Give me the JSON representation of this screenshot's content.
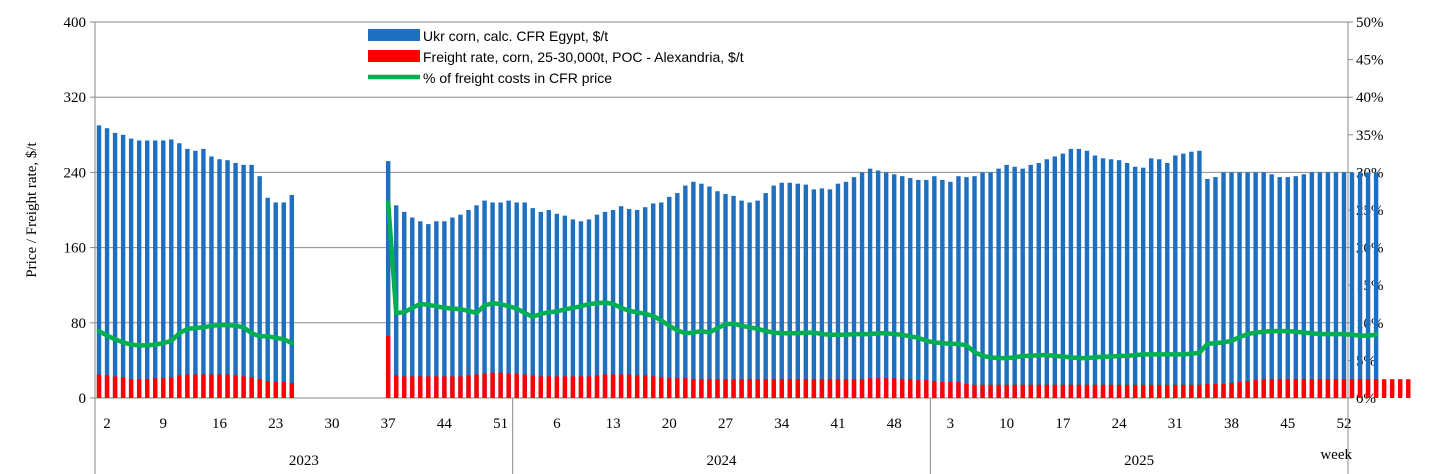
{
  "chart_data": {
    "type": "bar",
    "ylabel": "Price / Freight rate, $/t",
    "ylim": [
      0,
      400
    ],
    "y_ticks": [
      "0",
      "80",
      "160",
      "240",
      "320",
      "400"
    ],
    "y2lim": [
      0,
      50
    ],
    "y2_ticks": [
      "0%",
      "5%",
      "10%",
      "15%",
      "20%",
      "25%",
      "30%",
      "35%",
      "40%",
      "45%",
      "50%"
    ],
    "xlabel": "week",
    "grid": true,
    "legend_position": "top-center",
    "x_tick_labels": [
      {
        "week": 2,
        "label": "2"
      },
      {
        "week": 9,
        "label": "9"
      },
      {
        "week": 16,
        "label": "16"
      },
      {
        "week": 23,
        "label": "23"
      },
      {
        "week": 30,
        "label": "30"
      },
      {
        "week": 37,
        "label": "37"
      },
      {
        "week": 44,
        "label": "44"
      },
      {
        "week": 51,
        "label": "51"
      },
      {
        "week": 58,
        "label": "6"
      },
      {
        "week": 65,
        "label": "13"
      },
      {
        "week": 72,
        "label": "20"
      },
      {
        "week": 79,
        "label": "27"
      },
      {
        "week": 86,
        "label": "34"
      },
      {
        "week": 93,
        "label": "41"
      },
      {
        "week": 100,
        "label": "48"
      },
      {
        "week": 107,
        "label": "3"
      },
      {
        "week": 114,
        "label": "10"
      },
      {
        "week": 121,
        "label": "17"
      },
      {
        "week": 128,
        "label": "24"
      },
      {
        "week": 135,
        "label": "31"
      },
      {
        "week": 142,
        "label": "38"
      },
      {
        "week": 149,
        "label": "45"
      },
      {
        "week": 156,
        "label": "52"
      }
    ],
    "years": [
      {
        "label": "2023",
        "start_week": 1,
        "end_week": 52
      },
      {
        "label": "2024",
        "start_week": 53,
        "end_week": 104
      },
      {
        "label": "2025",
        "start_week": 105,
        "end_week": 156
      }
    ],
    "series": [
      {
        "name": "Ukr corn, calc. CFR Egypt, $/t",
        "color": "#1f6fbf",
        "kind": "bar",
        "values": [
          290,
          287,
          282,
          280,
          276,
          274,
          274,
          274,
          274,
          275,
          271,
          265,
          263,
          265,
          257,
          254,
          253,
          250,
          248,
          248,
          236,
          213,
          208,
          208,
          216,
          null,
          null,
          null,
          null,
          null,
          null,
          null,
          null,
          null,
          null,
          null,
          252,
          205,
          198,
          192,
          188,
          185,
          188,
          188,
          192,
          195,
          200,
          205,
          210,
          208,
          208,
          210,
          208,
          208,
          202,
          198,
          200,
          196,
          194,
          190,
          188,
          190,
          195,
          198,
          200,
          204,
          201,
          200,
          203,
          207,
          208,
          214,
          218,
          226,
          230,
          228,
          225,
          220,
          217,
          215,
          210,
          208,
          210,
          218,
          226,
          229,
          229,
          228,
          227,
          222,
          223,
          222,
          228,
          230,
          235,
          240,
          244,
          242,
          240,
          238,
          236,
          234,
          232,
          232,
          236,
          232,
          230,
          236,
          235,
          236,
          240,
          240,
          244,
          248,
          246,
          244,
          248,
          250,
          254,
          257,
          260,
          265,
          265,
          263,
          258,
          255,
          254,
          253,
          250,
          246,
          245,
          255,
          254,
          250,
          258,
          260,
          262,
          263,
          233,
          235,
          240,
          240,
          240,
          240,
          240,
          240,
          238,
          235,
          235,
          236,
          238,
          240,
          240,
          240,
          240,
          240,
          240,
          240,
          240,
          240
        ]
      },
      {
        "name": "Freight rate, corn, 25-30,000t, POC - Alexandria, $/t",
        "color": "#ff0000",
        "kind": "bar",
        "values": [
          25,
          24,
          23,
          22,
          20,
          20,
          20,
          21,
          21,
          22,
          24,
          25,
          25,
          25,
          25,
          25,
          25,
          24,
          23,
          22,
          20,
          18,
          17,
          17,
          16,
          null,
          null,
          null,
          null,
          null,
          null,
          null,
          null,
          null,
          null,
          null,
          66,
          24,
          23,
          23,
          23,
          23,
          23,
          23,
          23,
          23,
          24,
          25,
          26,
          27,
          27,
          26,
          26,
          25,
          24,
          23,
          23,
          23,
          23,
          23,
          23,
          23,
          24,
          25,
          25,
          25,
          25,
          24,
          24,
          23,
          22,
          21,
          21,
          21,
          20,
          20,
          20,
          20,
          20,
          20,
          20,
          20,
          20,
          20,
          20,
          20,
          20,
          20,
          20,
          20,
          20,
          20,
          20,
          20,
          20,
          20,
          21,
          21,
          21,
          21,
          20,
          20,
          19,
          19,
          18,
          17,
          17,
          17,
          15,
          14,
          14,
          14,
          14,
          14,
          14,
          14,
          14,
          14,
          14,
          14,
          14,
          14,
          14,
          14,
          14,
          14,
          14,
          14,
          14,
          14,
          14,
          14,
          14,
          14,
          14,
          14,
          14,
          14,
          15,
          15,
          15,
          16,
          17,
          18,
          19,
          20,
          20,
          20,
          20,
          20,
          20,
          20,
          20,
          20,
          20,
          20,
          20,
          20,
          20,
          20,
          20,
          20,
          20,
          20
        ]
      },
      {
        "name": "% of freight costs in CFR price",
        "color": "#00b050",
        "kind": "line",
        "axis": "right",
        "values": [
          8.9,
          8.3,
          7.8,
          7.4,
          7.1,
          7.0,
          7.0,
          7.1,
          7.3,
          7.6,
          8.6,
          9.2,
          9.3,
          9.4,
          9.6,
          9.7,
          9.7,
          9.6,
          9.4,
          8.6,
          8.2,
          8.2,
          8.0,
          7.8,
          7.3,
          null,
          null,
          null,
          null,
          null,
          null,
          null,
          null,
          null,
          null,
          null,
          26.0,
          11.3,
          11.4,
          12.0,
          12.5,
          12.4,
          12.2,
          12.0,
          11.9,
          11.8,
          11.6,
          11.3,
          12.3,
          12.6,
          12.5,
          12.2,
          11.9,
          11.3,
          10.8,
          11.2,
          11.4,
          11.5,
          11.8,
          12.0,
          12.2,
          12.5,
          12.6,
          12.7,
          12.5,
          12.0,
          11.6,
          11.4,
          11.2,
          10.9,
          10.3,
          9.6,
          9.0,
          8.6,
          8.7,
          8.9,
          8.7,
          9.3,
          9.8,
          9.9,
          9.6,
          9.4,
          9.2,
          8.9,
          8.7,
          8.6,
          8.6,
          8.6,
          8.7,
          8.7,
          8.5,
          8.4,
          8.4,
          8.4,
          8.5,
          8.5,
          8.5,
          8.6,
          8.6,
          8.5,
          8.4,
          8.2,
          8.0,
          7.6,
          7.4,
          7.3,
          7.2,
          7.2,
          7.0,
          6.1,
          5.6,
          5.4,
          5.3,
          5.3,
          5.4,
          5.6,
          5.6,
          5.7,
          5.7,
          5.6,
          5.5,
          5.4,
          5.3,
          5.3,
          5.4,
          5.5,
          5.5,
          5.6,
          5.6,
          5.7,
          5.8,
          5.8,
          5.8,
          5.8,
          5.8,
          5.8,
          5.9,
          6.0,
          7.2,
          7.3,
          7.4,
          7.6,
          8.1,
          8.5,
          8.7,
          8.8,
          8.9,
          8.9,
          8.9,
          8.8,
          8.7,
          8.6,
          8.5,
          8.5,
          8.5,
          8.5,
          8.4,
          8.3,
          8.3,
          8.4
        ]
      }
    ]
  }
}
